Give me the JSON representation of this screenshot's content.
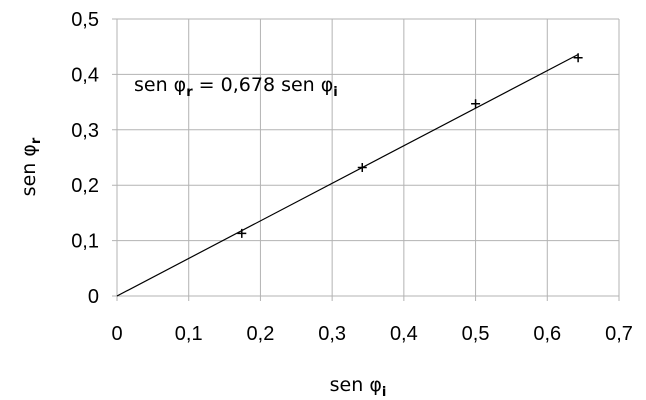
{
  "chart_data": {
    "type": "scatter",
    "title": "",
    "xlabel": {
      "base": "sen φ",
      "sub": "i"
    },
    "ylabel": {
      "base": "sen φ",
      "sub": "r"
    },
    "xlim": [
      0,
      0.7
    ],
    "ylim": [
      0,
      0.5
    ],
    "x_ticks": [
      {
        "value": 0,
        "label": "0"
      },
      {
        "value": 0.1,
        "label": "0,1"
      },
      {
        "value": 0.2,
        "label": "0,2"
      },
      {
        "value": 0.3,
        "label": "0,3"
      },
      {
        "value": 0.4,
        "label": "0,4"
      },
      {
        "value": 0.5,
        "label": "0,5"
      },
      {
        "value": 0.6,
        "label": "0,6"
      },
      {
        "value": 0.7,
        "label": "0,7"
      }
    ],
    "y_ticks": [
      {
        "value": 0,
        "label": "0"
      },
      {
        "value": 0.1,
        "label": "0,1"
      },
      {
        "value": 0.2,
        "label": "0,2"
      },
      {
        "value": 0.3,
        "label": "0,3"
      },
      {
        "value": 0.4,
        "label": "0,4"
      },
      {
        "value": 0.5,
        "label": "0,5"
      }
    ],
    "grid": true,
    "legend": "none",
    "series": [
      {
        "marker": "plus",
        "color": "#000000",
        "points": [
          {
            "x": 0.174,
            "y": 0.113
          },
          {
            "x": 0.342,
            "y": 0.232
          },
          {
            "x": 0.5,
            "y": 0.347
          },
          {
            "x": 0.643,
            "y": 0.43
          }
        ]
      }
    ],
    "trendline": {
      "slope": 0.678,
      "intercept": 0,
      "x_range": [
        0,
        0.643
      ],
      "color": "#000000"
    },
    "annotation": {
      "parts": [
        {
          "text": "sen φ",
          "sub": false
        },
        {
          "text": "r",
          "sub": true
        },
        {
          "text": " = 0,678 sen φ",
          "sub": false
        },
        {
          "text": "i",
          "sub": true
        }
      ],
      "anchor": "upper-left"
    },
    "colors": {
      "grid": "#b3b3b3",
      "axis": "#b3b3b3",
      "text": "#000000"
    }
  }
}
